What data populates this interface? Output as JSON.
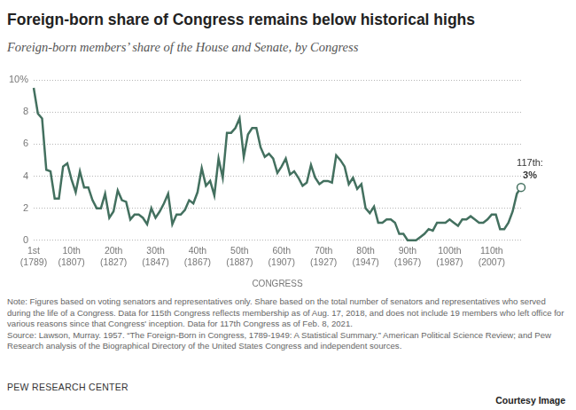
{
  "chart_data": {
    "type": "line",
    "title": "Foreign-born share of Congress remains below historical highs",
    "subtitle": "Foreign-born members’ share of the House and Senate, by Congress",
    "x_label": "CONGRESS",
    "categories": [
      "1st (1789)",
      null,
      null,
      null,
      null,
      null,
      null,
      null,
      null,
      "10th (1807)",
      null,
      null,
      null,
      null,
      null,
      null,
      null,
      null,
      null,
      "20th (1827)",
      null,
      null,
      null,
      null,
      null,
      null,
      null,
      null,
      null,
      "30th (1847)",
      null,
      null,
      null,
      null,
      null,
      null,
      null,
      null,
      null,
      "40th (1867)",
      null,
      null,
      null,
      null,
      null,
      null,
      null,
      null,
      null,
      "50th (1887)",
      null,
      null,
      null,
      null,
      null,
      null,
      null,
      null,
      null,
      "60th (1907)",
      null,
      null,
      null,
      null,
      null,
      null,
      null,
      null,
      null,
      "70th (1927)",
      null,
      null,
      null,
      null,
      null,
      null,
      null,
      null,
      null,
      "80th (1947)",
      null,
      null,
      null,
      null,
      null,
      null,
      null,
      null,
      null,
      "90th (1967)",
      null,
      null,
      null,
      null,
      null,
      null,
      null,
      null,
      null,
      "100th (1987)",
      null,
      null,
      null,
      null,
      null,
      null,
      null,
      null,
      null,
      "110th (2007)",
      null,
      null,
      null,
      null,
      null,
      null,
      null
    ],
    "values": [
      9.5,
      7.9,
      7.6,
      4.4,
      4.3,
      2.6,
      2.6,
      4.6,
      4.8,
      3.8,
      3.0,
      4.3,
      3.3,
      3.3,
      2.5,
      2.0,
      2.0,
      2.9,
      1.4,
      1.8,
      3.1,
      2.5,
      2.4,
      1.3,
      1.6,
      1.6,
      1.4,
      1.0,
      2.0,
      1.4,
      1.8,
      2.3,
      2.9,
      1.0,
      1.6,
      1.6,
      1.9,
      2.5,
      2.3,
      3.0,
      4.5,
      3.4,
      3.7,
      2.8,
      5.1,
      3.9,
      6.7,
      6.7,
      7.0,
      7.6,
      5.2,
      6.6,
      7.0,
      7.0,
      5.8,
      5.2,
      5.4,
      5.1,
      4.2,
      4.6,
      5.1,
      4.1,
      4.3,
      3.9,
      3.4,
      3.6,
      4.7,
      3.9,
      3.5,
      3.7,
      3.7,
      3.6,
      5.3,
      5.0,
      4.6,
      3.5,
      3.9,
      3.2,
      3.5,
      2.0,
      1.7,
      2.1,
      1.1,
      1.1,
      1.3,
      1.3,
      1.1,
      0.4,
      0.4,
      0.0,
      0.0,
      0.0,
      0.2,
      0.4,
      0.7,
      0.6,
      1.1,
      1.1,
      1.1,
      1.3,
      1.1,
      0.9,
      1.3,
      1.3,
      1.5,
      1.3,
      1.1,
      1.1,
      1.3,
      1.6,
      1.6,
      0.7,
      0.7,
      1.1,
      1.8,
      2.9,
      3.3
    ],
    "color": "#43705f",
    "ylim": [
      0,
      10
    ],
    "yticks": [
      0,
      2,
      4,
      6,
      8,
      {
        "value": 10,
        "label": "10%"
      }
    ],
    "grid": true,
    "legend": false,
    "annotation": [
      "117th:",
      "3%"
    ],
    "note": "Note: Figures based on voting senators and representatives only. Share based on the total number of senators and representatives who served during the life of a Congress. Data for 115th Congress reflects membership as of Aug. 17, 2018, and does not include 19 members who left office for various reasons since that Congress' inception. Data for 117th Congress as of Feb. 8, 2021.",
    "source": "Source: Lawson, Murray. 1957. “The Foreign-Born in Congress, 1789-1949: A Statistical Summary.” American Political Science Review; and Pew Research analysis of the Biographical Directory of the United States Congress and independent sources.",
    "credit": "PEW RESEARCH CENTER",
    "image_credit": "Courtesy Image"
  }
}
